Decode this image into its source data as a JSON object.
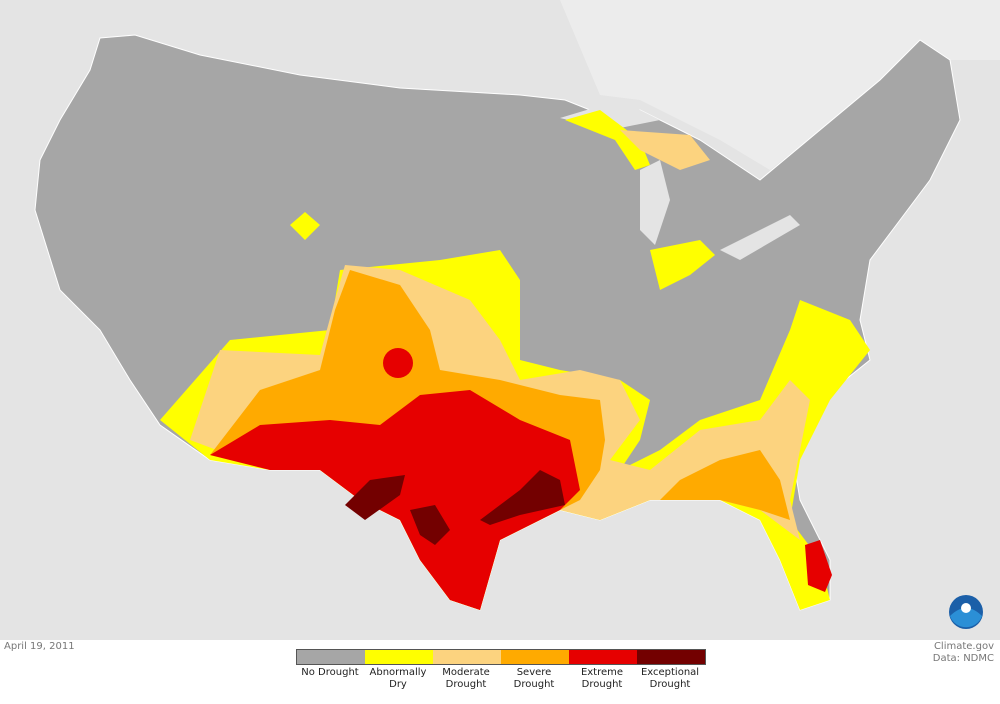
{
  "date": "April 19, 2011",
  "credit": "Climate.gov",
  "source": "Data: NDMC",
  "legend": [
    {
      "label": "No Drought",
      "color": "#a6a6a6"
    },
    {
      "label": "Abnormally Dry",
      "color": "#ffff00"
    },
    {
      "label": "Moderate Drought",
      "color": "#fcd37f"
    },
    {
      "label": "Severe Drought",
      "color": "#ffaa00"
    },
    {
      "label": "Extreme Drought",
      "color": "#e60000"
    },
    {
      "label": "Exceptional Drought",
      "color": "#730000"
    }
  ]
}
